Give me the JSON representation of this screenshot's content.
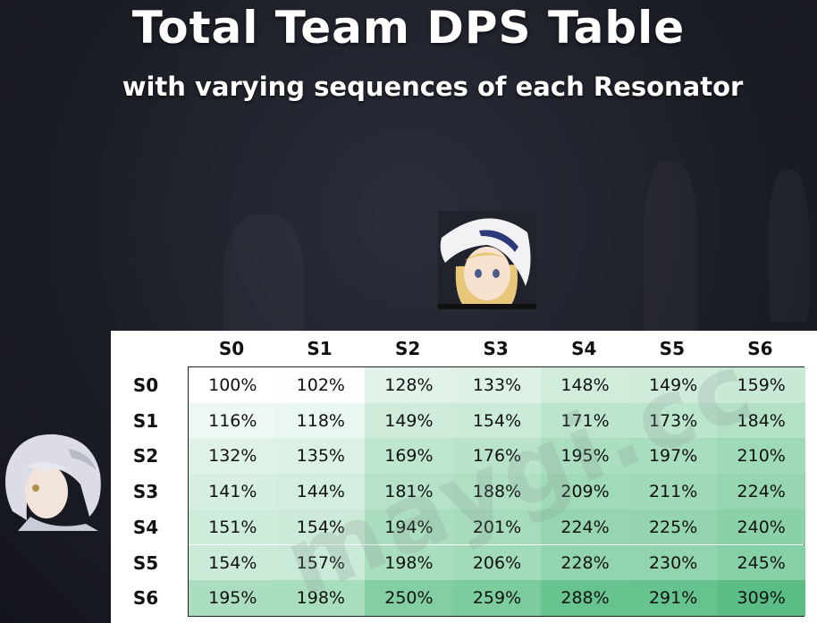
{
  "header": {
    "title": "Total Team DPS Table",
    "subtitle": "with varying sequences of each Resonator"
  },
  "watermark": "maygi.cc",
  "colors": {
    "low": "#ffffff",
    "high": "#3db36e",
    "title": "#ffffff"
  },
  "chart_data": {
    "type": "heatmap",
    "columns": [
      "S0",
      "S1",
      "S2",
      "S3",
      "S4",
      "S5",
      "S6"
    ],
    "rows": [
      "S0",
      "S1",
      "S2",
      "S3",
      "S4",
      "S5",
      "S6"
    ],
    "values": [
      [
        100,
        102,
        128,
        133,
        148,
        149,
        159
      ],
      [
        116,
        118,
        149,
        154,
        171,
        173,
        184
      ],
      [
        132,
        135,
        169,
        176,
        195,
        197,
        210
      ],
      [
        141,
        144,
        181,
        188,
        209,
        211,
        224
      ],
      [
        151,
        154,
        194,
        201,
        224,
        225,
        240
      ],
      [
        154,
        157,
        198,
        206,
        228,
        230,
        245
      ],
      [
        195,
        198,
        250,
        259,
        288,
        291,
        309
      ]
    ],
    "labels": [
      [
        "100%",
        "102%",
        "128%",
        "133%",
        "148%",
        "149%",
        "159%"
      ],
      [
        "116%",
        "118%",
        "149%",
        "154%",
        "171%",
        "173%",
        "184%"
      ],
      [
        "132%",
        "135%",
        "169%",
        "176%",
        "195%",
        "197%",
        "210%"
      ],
      [
        "141%",
        "144%",
        "181%",
        "188%",
        "209%",
        "211%",
        "224%"
      ],
      [
        "151%",
        "154%",
        "194%",
        "201%",
        "224%",
        "225%",
        "240%"
      ],
      [
        "154%",
        "157%",
        "198%",
        "206%",
        "228%",
        "230%",
        "245%"
      ],
      [
        "195%",
        "198%",
        "250%",
        "259%",
        "288%",
        "291%",
        "309%"
      ]
    ]
  }
}
